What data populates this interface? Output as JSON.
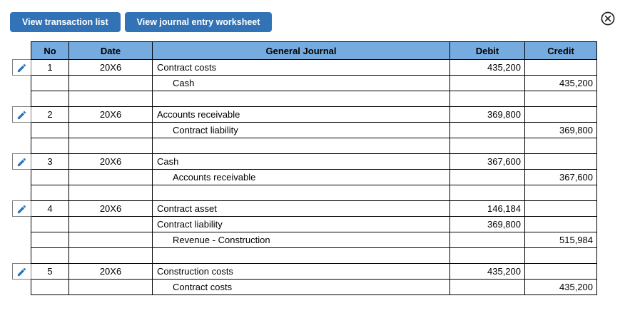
{
  "colors": {
    "button_blue": "#3273b8",
    "header_blue": "#76abdf",
    "pencil_blue": "#2e74b5",
    "grid_border": "#000000",
    "pencil_box_border": "#7f7f7f"
  },
  "toolbar": {
    "buttons": [
      {
        "label": "View transaction list"
      },
      {
        "label": "View journal entry worksheet"
      }
    ]
  },
  "icons": {
    "close": "circled-x-icon",
    "edit": "pencil-icon"
  },
  "table": {
    "headers": [
      "No",
      "Date",
      "General Journal",
      "Debit",
      "Credit"
    ],
    "entries": [
      {
        "no": "1",
        "date": "20X6",
        "lines": [
          {
            "account": "Contract costs",
            "indent": false,
            "debit": "435,200",
            "credit": ""
          },
          {
            "account": "Cash",
            "indent": true,
            "debit": "",
            "credit": "435,200"
          }
        ]
      },
      {
        "no": "2",
        "date": "20X6",
        "lines": [
          {
            "account": "Accounts receivable",
            "indent": false,
            "debit": "369,800",
            "credit": ""
          },
          {
            "account": "Contract liability",
            "indent": true,
            "debit": "",
            "credit": "369,800"
          }
        ]
      },
      {
        "no": "3",
        "date": "20X6",
        "lines": [
          {
            "account": "Cash",
            "indent": false,
            "debit": "367,600",
            "credit": ""
          },
          {
            "account": "Accounts receivable",
            "indent": true,
            "debit": "",
            "credit": "367,600"
          }
        ]
      },
      {
        "no": "4",
        "date": "20X6",
        "lines": [
          {
            "account": "Contract asset",
            "indent": false,
            "debit": "146,184",
            "credit": ""
          },
          {
            "account": "Contract liability",
            "indent": false,
            "debit": "369,800",
            "credit": ""
          },
          {
            "account": "Revenue - Construction",
            "indent": true,
            "debit": "",
            "credit": "515,984"
          }
        ]
      },
      {
        "no": "5",
        "date": "20X6",
        "lines": [
          {
            "account": "Construction costs",
            "indent": false,
            "debit": "435,200",
            "credit": ""
          },
          {
            "account": "Contract costs",
            "indent": true,
            "debit": "",
            "credit": "435,200"
          }
        ]
      }
    ]
  }
}
